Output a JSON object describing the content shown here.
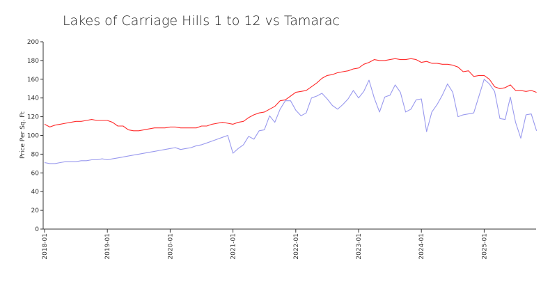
{
  "chart_data": {
    "type": "line",
    "title": "Lakes of Carriage Hills 1 to 12 vs Tamarac",
    "xlabel": "",
    "ylabel": "Price Per Sq. Ft",
    "ylim": [
      0,
      200
    ],
    "yticks": [
      0,
      20,
      40,
      60,
      80,
      100,
      120,
      140,
      160,
      180,
      200
    ],
    "x_start": "2018-01",
    "xticks": [
      "2018-01",
      "2019-01",
      "2020-01",
      "2021-01",
      "2022-01",
      "2023-01",
      "2024-01",
      "2025-01"
    ],
    "grid": false,
    "legend": "none",
    "colors": {
      "red_series": "#ff2a2a",
      "blue_series": "#9999ee",
      "axis": "#333333"
    },
    "series": [
      {
        "color": "#ff2a2a",
        "values": [
          112,
          109,
          111,
          112,
          113,
          114,
          115,
          115,
          116,
          117,
          116,
          116,
          116,
          114,
          110,
          110,
          106,
          105,
          105,
          106,
          107,
          108,
          108,
          108,
          109,
          109,
          108,
          108,
          108,
          108,
          110,
          110,
          112,
          113,
          114,
          113,
          112,
          114,
          115,
          119,
          122,
          124,
          125,
          128,
          131,
          137,
          138,
          142,
          146,
          147,
          148,
          152,
          156,
          161,
          164,
          165,
          167,
          168,
          169,
          171,
          172,
          176,
          178,
          181,
          180,
          180,
          181,
          182,
          181,
          181,
          182,
          181,
          178,
          179,
          177,
          177,
          176,
          176,
          175,
          173,
          168,
          169,
          163,
          164,
          164,
          160,
          152,
          150,
          151,
          154,
          148,
          148,
          147,
          148,
          146
        ]
      },
      {
        "color": "#9999ee",
        "values": [
          71,
          70,
          70,
          71,
          72,
          72,
          72,
          73,
          73,
          74,
          74,
          75,
          74,
          75,
          76,
          77,
          78,
          79,
          80,
          81,
          82,
          83,
          84,
          85,
          86,
          87,
          85,
          86,
          87,
          89,
          90,
          92,
          94,
          96,
          98,
          100,
          81,
          86,
          90,
          99,
          96,
          105,
          106,
          121,
          114,
          128,
          137,
          137,
          127,
          121,
          124,
          140,
          142,
          145,
          139,
          132,
          128,
          133,
          139,
          148,
          140,
          147,
          159,
          140,
          125,
          141,
          143,
          154,
          146,
          125,
          128,
          138,
          139,
          104,
          125,
          133,
          143,
          155,
          146,
          120,
          122,
          123,
          124,
          142,
          160,
          155,
          147,
          118,
          117,
          141,
          114,
          97,
          122,
          123,
          105
        ]
      }
    ]
  }
}
